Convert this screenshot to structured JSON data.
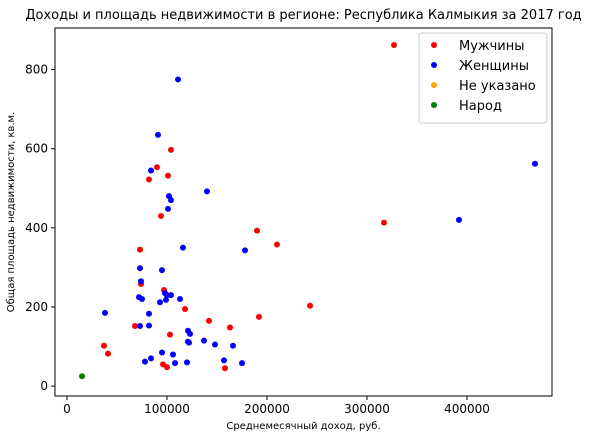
{
  "chart_data": {
    "type": "scatter",
    "title": "Доходы и площадь недвижимости в регионе: Республика Калмыкия за 2017 год",
    "xlabel": "Среднемесячный доход, руб.",
    "ylabel": "Общая площадь недвижимости, кв.м.",
    "xlim": [
      -12000,
      485000
    ],
    "ylim": [
      -25,
      905
    ],
    "xticks": [
      0,
      100000,
      200000,
      300000,
      400000
    ],
    "yticks": [
      0,
      200,
      400,
      600,
      800
    ],
    "grid": false,
    "legend_position": "top-right",
    "series": [
      {
        "name": "Мужчины",
        "color": "#ff0000",
        "points": [
          [
            327000,
            862
          ],
          [
            104000,
            597
          ],
          [
            90000,
            553
          ],
          [
            82000,
            522
          ],
          [
            101000,
            532
          ],
          [
            94000,
            430
          ],
          [
            317000,
            413
          ],
          [
            190000,
            393
          ],
          [
            210000,
            358
          ],
          [
            73000,
            345
          ],
          [
            74000,
            258
          ],
          [
            97000,
            243
          ],
          [
            243000,
            203
          ],
          [
            118000,
            195
          ],
          [
            192000,
            175
          ],
          [
            142000,
            165
          ],
          [
            163000,
            148
          ],
          [
            68000,
            152
          ],
          [
            103000,
            130
          ],
          [
            37000,
            102
          ],
          [
            41000,
            82
          ],
          [
            96000,
            55
          ],
          [
            100000,
            48
          ],
          [
            158000,
            45
          ]
        ]
      },
      {
        "name": "Женщины",
        "color": "#0000ff",
        "points": [
          [
            111000,
            775
          ],
          [
            91000,
            635
          ],
          [
            84000,
            545
          ],
          [
            102000,
            480
          ],
          [
            104000,
            470
          ],
          [
            468000,
            562
          ],
          [
            140000,
            492
          ],
          [
            101000,
            448
          ],
          [
            392000,
            420
          ],
          [
            116000,
            350
          ],
          [
            178000,
            343
          ],
          [
            73000,
            298
          ],
          [
            95000,
            293
          ],
          [
            74000,
            265
          ],
          [
            98000,
            235
          ],
          [
            100000,
            230
          ],
          [
            99000,
            218
          ],
          [
            104000,
            230
          ],
          [
            113000,
            220
          ],
          [
            72000,
            225
          ],
          [
            75000,
            220
          ],
          [
            93000,
            212
          ],
          [
            38000,
            185
          ],
          [
            82000,
            183
          ],
          [
            121000,
            140
          ],
          [
            123000,
            132
          ],
          [
            121000,
            112
          ],
          [
            137000,
            115
          ],
          [
            122000,
            110
          ],
          [
            148000,
            105
          ],
          [
            166000,
            102
          ],
          [
            82000,
            153
          ],
          [
            73000,
            152
          ],
          [
            95000,
            85
          ],
          [
            106000,
            80
          ],
          [
            84000,
            70
          ],
          [
            78000,
            62
          ],
          [
            120000,
            60
          ],
          [
            157000,
            65
          ],
          [
            175000,
            58
          ],
          [
            108000,
            58
          ]
        ]
      },
      {
        "name": "Не указано",
        "color": "#ffa500",
        "points": []
      },
      {
        "name": "Народ",
        "color": "#008000",
        "points": [
          [
            15000,
            25
          ]
        ]
      }
    ]
  }
}
